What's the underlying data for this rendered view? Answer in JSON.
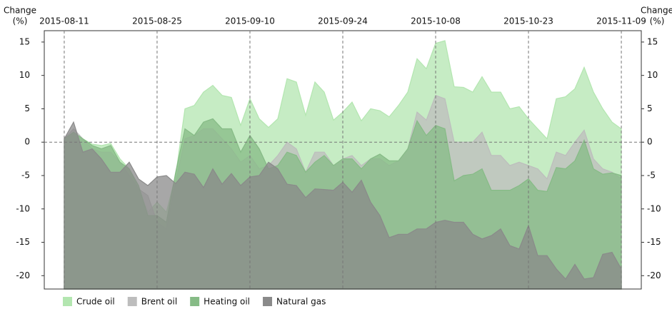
{
  "chart_data": {
    "type": "area",
    "y_label_lines": [
      "Change",
      "(%)"
    ],
    "categories": [
      "2015-08-11",
      null,
      null,
      null,
      null,
      null,
      null,
      null,
      null,
      null,
      "2015-08-25",
      null,
      null,
      null,
      null,
      null,
      null,
      null,
      null,
      null,
      "2015-09-10",
      null,
      null,
      null,
      null,
      null,
      null,
      null,
      null,
      null,
      "2015-09-24",
      null,
      null,
      null,
      null,
      null,
      null,
      null,
      null,
      null,
      "2015-10-08",
      null,
      null,
      null,
      null,
      null,
      null,
      null,
      null,
      null,
      "2015-10-23",
      null,
      null,
      null,
      null,
      null,
      null,
      null,
      null,
      null,
      "2015-11-09"
    ],
    "ylim": [
      -22,
      16.7
    ],
    "yticks": [
      15,
      10,
      5,
      0,
      -5,
      -10,
      -15,
      -20
    ],
    "grid": true,
    "legend": "bottom-left",
    "series": [
      {
        "name": "Crude oil",
        "color": "#b3e6b0",
        "values": [
          0.5,
          1.2,
          0.5,
          -0.3,
          -0.5,
          -0.2,
          -2.5,
          -4,
          -7,
          -10.5,
          -9,
          -10.5,
          -5,
          5,
          5.5,
          7.5,
          8.5,
          7,
          6.7,
          2.5,
          6.5,
          3.5,
          2.2,
          3.5,
          9.5,
          9,
          4,
          9,
          7.5,
          3.3,
          4.5,
          6,
          3.2,
          5,
          4.7,
          3.8,
          5.5,
          7.5,
          12.5,
          11,
          14.8,
          15.2,
          8.3,
          8.2,
          7.5,
          9.8,
          7.5,
          7.5,
          5,
          5.3,
          3.5,
          2,
          0.5,
          6.5,
          6.8,
          8,
          11.2,
          7.5,
          5,
          3,
          2
        ]
      },
      {
        "name": "Brent oil",
        "color": "#bdbdbd",
        "values": [
          0.5,
          2,
          0.5,
          -1,
          -1.5,
          -1.5,
          -3,
          -5,
          -7,
          -8,
          -12,
          -13,
          -6,
          0.5,
          1,
          2,
          2,
          0.5,
          -1,
          -3,
          -2,
          -4,
          -3.5,
          -2,
          0,
          -1,
          -4.5,
          -1.5,
          -1.5,
          -3.5,
          -2.5,
          -2,
          -3.5,
          -2.5,
          -2.5,
          -3.5,
          -2.8,
          -1,
          4.5,
          3.3,
          7,
          6.5,
          0,
          0,
          0,
          1.5,
          -2,
          -2,
          -3.5,
          -3,
          -3.5,
          -4,
          -5.5,
          -1.5,
          -2,
          0,
          1.8,
          -2.5,
          -4,
          -4.5,
          -5.5
        ]
      },
      {
        "name": "Heating oil",
        "color": "#86bb86",
        "values": [
          0.5,
          1.5,
          0.5,
          -0.5,
          -1,
          -0.5,
          -3,
          -4,
          -6.5,
          -11,
          -11,
          -12,
          -4.5,
          2,
          1,
          3,
          3.5,
          2,
          2,
          -1.5,
          1,
          -1,
          -4,
          -3.5,
          -1.5,
          -2,
          -4.5,
          -3,
          -2,
          -3.5,
          -2.5,
          -2.5,
          -4,
          -2.5,
          -1.8,
          -2.8,
          -2.8,
          -1,
          3.2,
          1,
          2.5,
          2,
          -5.8,
          -5,
          -4.8,
          -4,
          -7.2,
          -7.2,
          -7.2,
          -6.5,
          -5.5,
          -7.2,
          -7.4,
          -3.8,
          -4,
          -2.8,
          0.3,
          -4,
          -4.8,
          -4.6,
          -5
        ]
      },
      {
        "name": "Natural gas",
        "color": "#8a8a8a",
        "values": [
          0.5,
          3,
          -1.5,
          -1,
          -2.5,
          -4.5,
          -4.5,
          -3,
          -5.5,
          -6.5,
          -5.2,
          -5,
          -6.2,
          -4.5,
          -4.8,
          -6.8,
          -4,
          -6.3,
          -4.7,
          -6.5,
          -5.2,
          -5,
          -3,
          -4,
          -6.3,
          -6.5,
          -8.3,
          -7,
          -7.1,
          -7.2,
          -6,
          -7.5,
          -5.7,
          -9,
          -11,
          -14.3,
          -13.8,
          -13.8,
          -13,
          -13,
          -12,
          -11.7,
          -12,
          -12,
          -13.8,
          -14.5,
          -14,
          -13,
          -15.5,
          -16,
          -12.5,
          -17,
          -17,
          -19,
          -20.5,
          -18.3,
          -20.5,
          -20.3,
          -16.8,
          -16.5,
          -19
        ]
      }
    ]
  }
}
